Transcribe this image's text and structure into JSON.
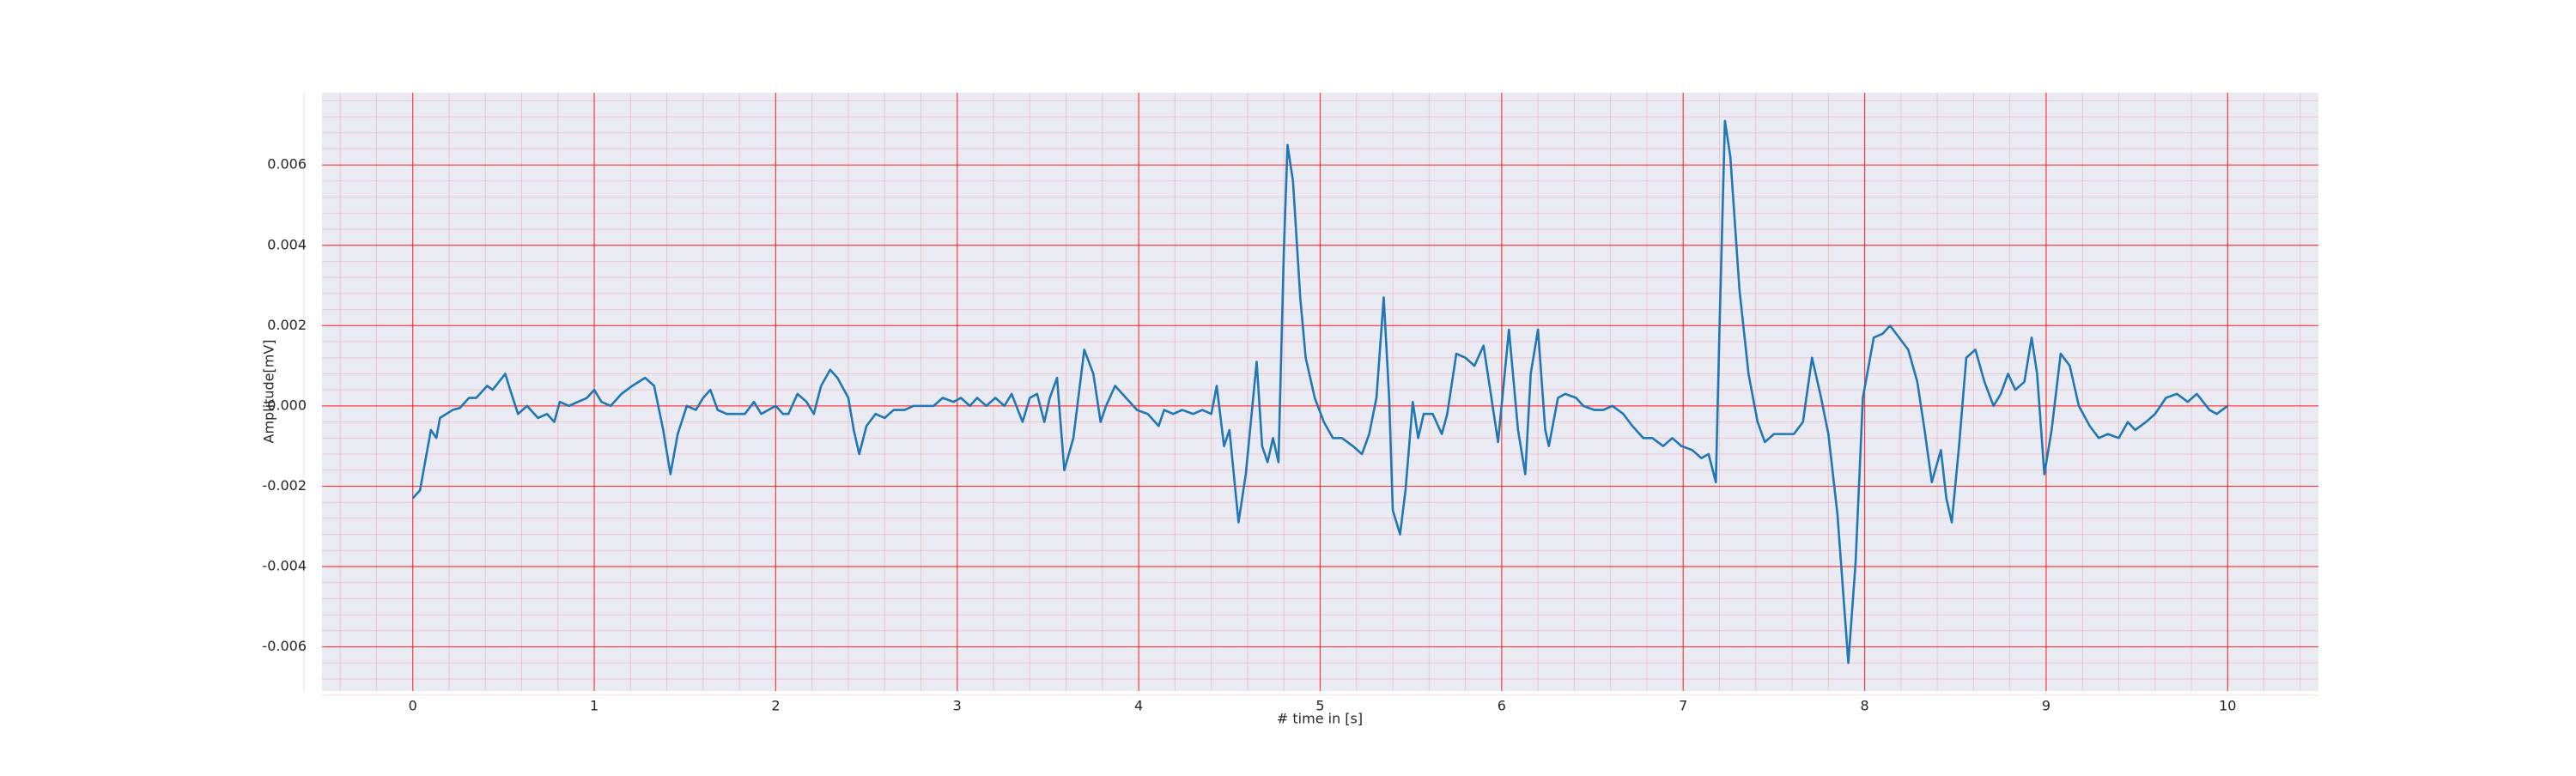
{
  "chart_data": {
    "type": "line",
    "xlabel": "# time in [s]",
    "ylabel": "Amplitude[mV]",
    "x": [
      0,
      0.04,
      0.1,
      0.13,
      0.15,
      0.22,
      0.26,
      0.31,
      0.35,
      0.41,
      0.44,
      0.51,
      0.53,
      0.58,
      0.63,
      0.69,
      0.74,
      0.78,
      0.81,
      0.86,
      0.91,
      0.96,
      1.0,
      1.04,
      1.09,
      1.15,
      1.21,
      1.28,
      1.33,
      1.38,
      1.42,
      1.46,
      1.51,
      1.56,
      1.6,
      1.64,
      1.68,
      1.73,
      1.77,
      1.83,
      1.88,
      1.92,
      1.96,
      2.0,
      2.04,
      2.07,
      2.12,
      2.17,
      2.21,
      2.25,
      2.3,
      2.34,
      2.4,
      2.43,
      2.46,
      2.5,
      2.55,
      2.6,
      2.65,
      2.71,
      2.76,
      2.81,
      2.87,
      2.92,
      2.98,
      3.02,
      3.07,
      3.11,
      3.16,
      3.21,
      3.26,
      3.3,
      3.36,
      3.4,
      3.44,
      3.48,
      3.51,
      3.55,
      3.59,
      3.64,
      3.7,
      3.75,
      3.79,
      3.82,
      3.87,
      3.93,
      3.99,
      4.05,
      4.11,
      4.14,
      4.19,
      4.24,
      4.3,
      4.35,
      4.4,
      4.43,
      4.47,
      4.5,
      4.55,
      4.59,
      4.65,
      4.68,
      4.71,
      4.74,
      4.77,
      4.8,
      4.82,
      4.85,
      4.89,
      4.92,
      4.97,
      5.02,
      5.07,
      5.12,
      5.18,
      5.23,
      5.27,
      5.31,
      5.35,
      5.38,
      5.4,
      5.44,
      5.47,
      5.51,
      5.54,
      5.57,
      5.62,
      5.67,
      5.7,
      5.75,
      5.8,
      5.85,
      5.9,
      5.94,
      5.98,
      6.04,
      6.09,
      6.13,
      6.16,
      6.2,
      6.24,
      6.26,
      6.31,
      6.35,
      6.41,
      6.45,
      6.51,
      6.56,
      6.61,
      6.67,
      6.72,
      6.78,
      6.83,
      6.89,
      6.94,
      6.99,
      7.05,
      7.1,
      7.14,
      7.18,
      7.2,
      7.23,
      7.26,
      7.31,
      7.36,
      7.41,
      7.45,
      7.5,
      7.55,
      7.61,
      7.66,
      7.71,
      7.76,
      7.8,
      7.85,
      7.91,
      7.95,
      7.99,
      8.05,
      8.1,
      8.14,
      8.19,
      8.24,
      8.29,
      8.33,
      8.37,
      8.42,
      8.45,
      8.48,
      8.52,
      8.56,
      8.61,
      8.66,
      8.71,
      8.75,
      8.79,
      8.83,
      8.88,
      8.92,
      8.95,
      8.99,
      9.03,
      9.08,
      9.13,
      9.18,
      9.24,
      9.29,
      9.34,
      9.4,
      9.45,
      9.49,
      9.55,
      9.6,
      9.66,
      9.72,
      9.78,
      9.83,
      9.9,
      9.94,
      10.0
    ],
    "series": [
      {
        "name": "Amplitude",
        "color": "#1f77b4",
        "values": [
          -0.0023,
          -0.0021,
          -0.0006,
          -0.0008,
          -0.0003,
          -0.0001,
          -5e-05,
          0.0002,
          0.0002,
          0.0005,
          0.0004,
          0.0008,
          0.0005,
          -0.0002,
          0.0,
          -0.0003,
          -0.0002,
          -0.0004,
          0.0001,
          0.0,
          0.0001,
          0.0002,
          0.0004,
          0.0001,
          0.0,
          0.0003,
          0.0005,
          0.0007,
          0.0005,
          -0.0006,
          -0.0017,
          -0.0007,
          0.0,
          -0.0001,
          0.0002,
          0.0004,
          -0.0001,
          -0.0002,
          -0.0002,
          -0.0002,
          0.0001,
          -0.0002,
          -0.0001,
          0.0,
          -0.0002,
          -0.0002,
          0.0003,
          0.0001,
          -0.0002,
          0.0005,
          0.0009,
          0.0007,
          0.0002,
          -0.0006,
          -0.0012,
          -0.0005,
          -0.0002,
          -0.0003,
          -0.0001,
          -0.0001,
          0.0,
          0.0,
          0.0,
          0.0002,
          0.0001,
          0.0002,
          0.0,
          0.0002,
          0.0,
          0.0002,
          0.0,
          0.0003,
          -0.0004,
          0.0002,
          0.0003,
          -0.0004,
          0.0002,
          0.0007,
          -0.0016,
          -0.0008,
          0.0014,
          0.0008,
          -0.0004,
          0.0,
          0.0005,
          0.0002,
          -0.0001,
          -0.0002,
          -0.0005,
          -0.0001,
          -0.0002,
          -0.0001,
          -0.0002,
          -0.0001,
          -0.0002,
          0.0005,
          -0.001,
          -0.0006,
          -0.0029,
          -0.0017,
          0.0011,
          -0.001,
          -0.0014,
          -0.0008,
          -0.0014,
          0.0039,
          0.0065,
          0.0056,
          0.0027,
          0.0012,
          0.0002,
          -0.0004,
          -0.0008,
          -0.0008,
          -0.001,
          -0.0012,
          -0.0007,
          0.0002,
          0.0027,
          0.0002,
          -0.0026,
          -0.0032,
          -0.0021,
          0.0001,
          -0.0008,
          -0.0002,
          -0.0002,
          -0.0007,
          -0.0002,
          0.0013,
          0.0012,
          0.001,
          0.0015,
          0.0003,
          -0.0009,
          0.0019,
          -0.0006,
          -0.0017,
          0.0008,
          0.0019,
          -0.0006,
          -0.001,
          0.0002,
          0.0003,
          0.0002,
          0.0,
          -0.0001,
          -0.0001,
          0.0,
          -0.0002,
          -0.0005,
          -0.0008,
          -0.0008,
          -0.001,
          -0.0008,
          -0.001,
          -0.0011,
          -0.0013,
          -0.0012,
          -0.0019,
          0.0019,
          0.0071,
          0.0062,
          0.0029,
          0.0008,
          -0.0004,
          -0.0009,
          -0.0007,
          -0.0007,
          -0.0007,
          -0.0004,
          0.0012,
          0.0002,
          -0.0007,
          -0.0027,
          -0.0064,
          -0.0039,
          0.0002,
          0.0017,
          0.0018,
          0.002,
          0.0017,
          0.0014,
          0.0006,
          -0.0006,
          -0.0019,
          -0.0011,
          -0.0023,
          -0.0029,
          -0.001,
          0.0012,
          0.0014,
          0.0006,
          0.0,
          0.0003,
          0.0008,
          0.0004,
          0.0006,
          0.0017,
          0.0008,
          -0.0017,
          -0.0006,
          0.0013,
          0.001,
          0.0,
          -0.0005,
          -0.0008,
          -0.0007,
          -0.0008,
          -0.0004,
          -0.0006,
          -0.0004,
          -0.0002,
          0.0002,
          0.0003,
          0.0001,
          0.0003,
          -0.0001,
          -0.0002,
          0.0
        ]
      }
    ],
    "xlim": [
      -0.5,
      10.5
    ],
    "ylim": [
      -0.0071,
      0.0078
    ],
    "xticks": [
      0,
      1,
      2,
      3,
      4,
      5,
      6,
      7,
      8,
      9,
      10
    ],
    "yticks": [
      -0.006,
      -0.004,
      -0.002,
      {
        "value": 0,
        "label": "0.000"
      },
      0.002,
      0.004,
      0.006
    ],
    "grid": true,
    "minor_grid": true,
    "grid_color": "#ff0000",
    "background": "#eaeaf2"
  }
}
